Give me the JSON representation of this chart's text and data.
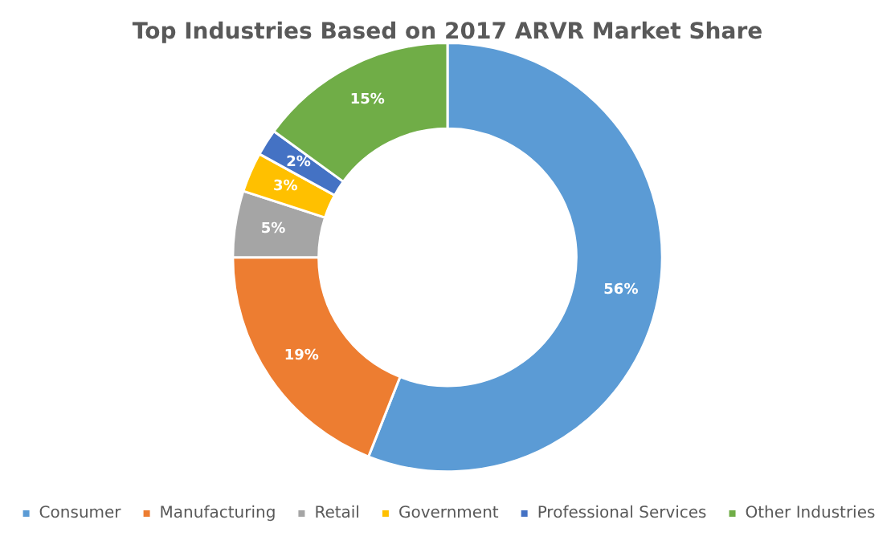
{
  "chart_data": {
    "type": "donut",
    "title": "Top Industries Based on 2017 ARVR Market Share",
    "categories": [
      "Consumer",
      "Manufacturing",
      "Retail",
      "Government",
      "Professional Services",
      "Other Industries"
    ],
    "values": [
      56,
      19,
      5,
      3,
      2,
      15
    ],
    "colors": [
      "#5b9bd5",
      "#ed7d31",
      "#a5a5a5",
      "#ffc000",
      "#4472c4",
      "#70ad47"
    ],
    "value_labels": [
      "56%",
      "19%",
      "5%",
      "3%",
      "2%",
      "15%"
    ],
    "legend": "bottom"
  }
}
